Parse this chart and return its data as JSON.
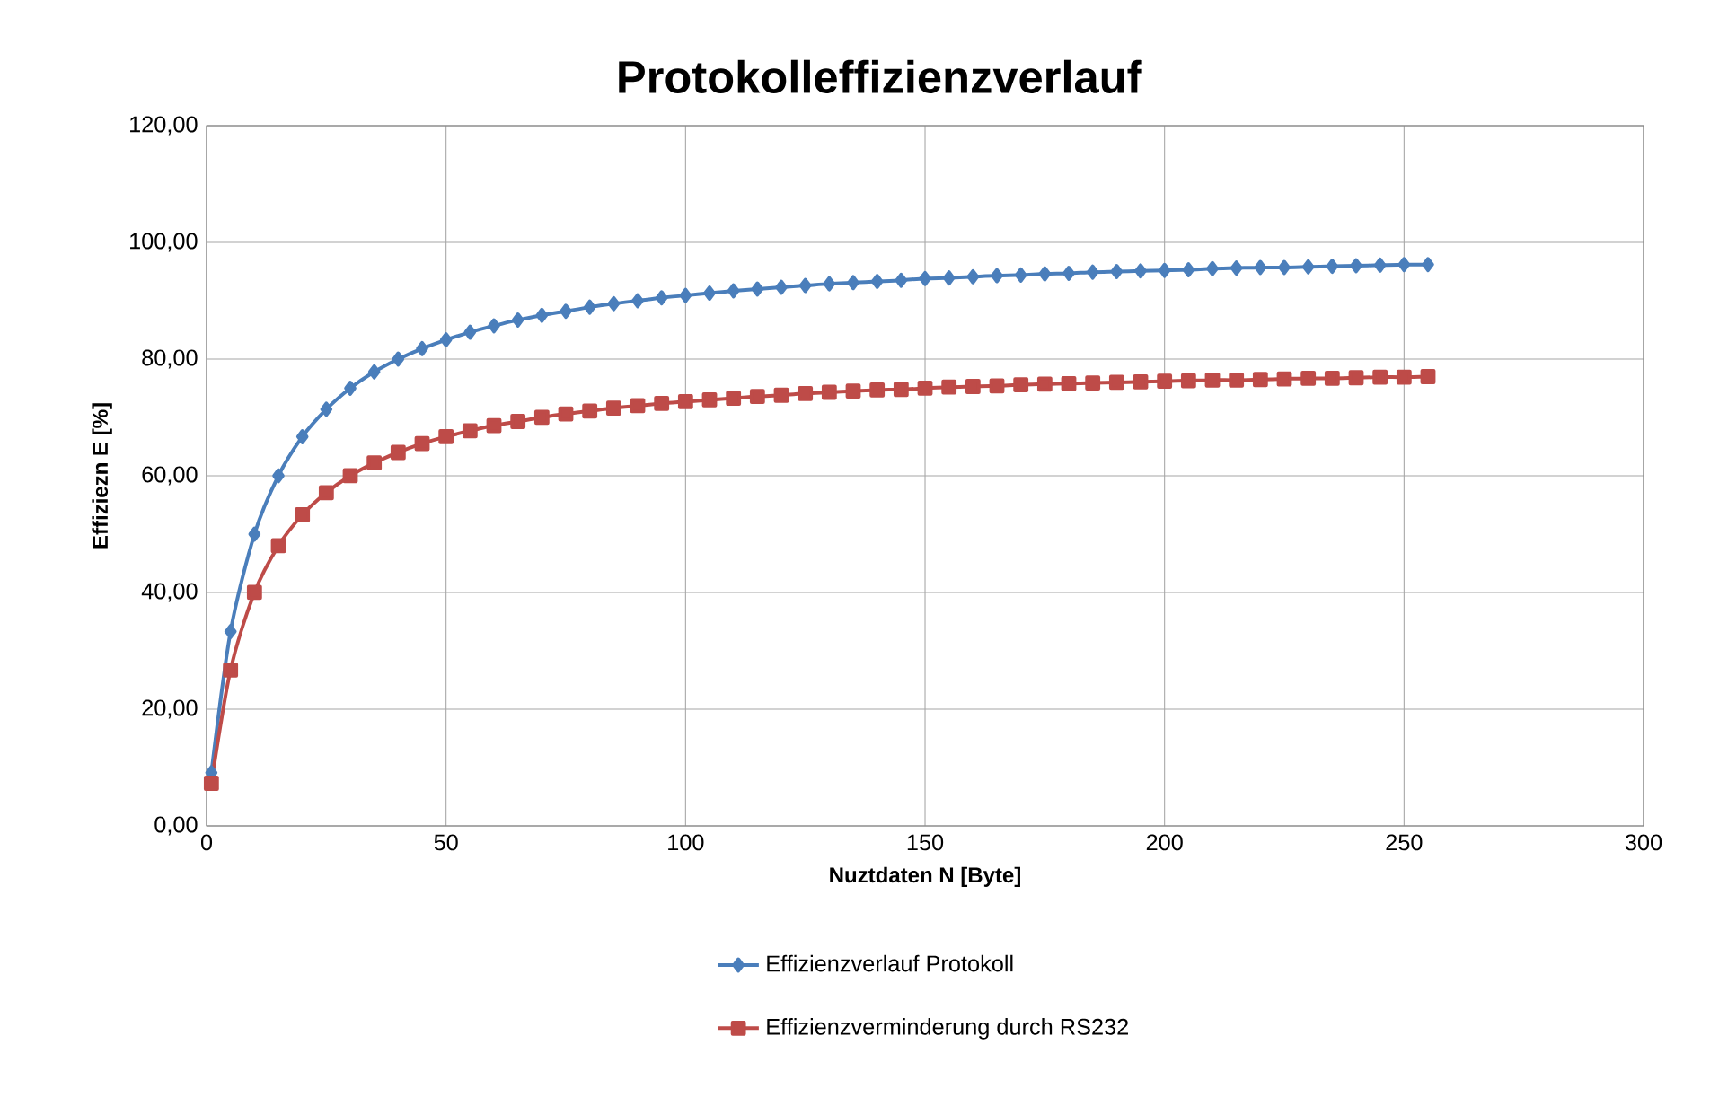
{
  "chart_data": {
    "type": "line",
    "title": "Protokolleffizienzverlauf",
    "xlabel": "Nuztdaten N [Byte]",
    "ylabel": "Effiziezn E [%]",
    "x": [
      1,
      5,
      10,
      15,
      20,
      25,
      30,
      35,
      40,
      45,
      50,
      55,
      60,
      65,
      70,
      75,
      80,
      85,
      90,
      95,
      100,
      105,
      110,
      115,
      120,
      125,
      130,
      135,
      140,
      145,
      150,
      155,
      160,
      165,
      170,
      175,
      180,
      185,
      190,
      195,
      200,
      205,
      210,
      215,
      220,
      225,
      230,
      235,
      240,
      245,
      250,
      255
    ],
    "series": [
      {
        "name": "Effizienzverlauf Protokoll",
        "color": "#4a7ebb",
        "marker": "diamond",
        "values": [
          9.1,
          33.3,
          50.0,
          60.0,
          66.7,
          71.4,
          75.0,
          77.8,
          80.0,
          81.8,
          83.3,
          84.6,
          85.7,
          86.7,
          87.5,
          88.2,
          88.9,
          89.5,
          90.0,
          90.5,
          90.9,
          91.3,
          91.7,
          92.0,
          92.3,
          92.6,
          92.9,
          93.1,
          93.3,
          93.5,
          93.8,
          93.9,
          94.1,
          94.3,
          94.4,
          94.6,
          94.7,
          94.9,
          95.0,
          95.1,
          95.2,
          95.3,
          95.5,
          95.6,
          95.7,
          95.7,
          95.8,
          95.9,
          96.0,
          96.1,
          96.2,
          96.2
        ]
      },
      {
        "name": "Effizienzverminderung durch RS232",
        "color": "#be4b48",
        "marker": "square",
        "values": [
          7.3,
          26.7,
          40.0,
          48.0,
          53.3,
          57.1,
          60.0,
          62.2,
          64.0,
          65.5,
          66.7,
          67.7,
          68.6,
          69.3,
          70.0,
          70.6,
          71.1,
          71.6,
          72.0,
          72.4,
          72.7,
          73.0,
          73.3,
          73.6,
          73.8,
          74.1,
          74.3,
          74.5,
          74.7,
          74.8,
          75.0,
          75.2,
          75.3,
          75.4,
          75.6,
          75.7,
          75.8,
          75.9,
          76.0,
          76.1,
          76.2,
          76.3,
          76.4,
          76.4,
          76.5,
          76.6,
          76.7,
          76.7,
          76.8,
          76.9,
          76.9,
          77.0
        ]
      }
    ],
    "xlim": [
      0,
      300
    ],
    "ylim": [
      0,
      120
    ],
    "xticks": [
      0,
      50,
      100,
      150,
      200,
      250,
      300
    ],
    "yticks": [
      {
        "value": 0,
        "label": "0,00"
      },
      {
        "value": 20,
        "label": "20,00"
      },
      {
        "value": 40,
        "label": "40,00"
      },
      {
        "value": 60,
        "label": "60,00"
      },
      {
        "value": 80,
        "label": "80,00"
      },
      {
        "value": 100,
        "label": "100,00"
      },
      {
        "value": 120,
        "label": "120,00"
      }
    ],
    "grid": true,
    "legend": "bottom"
  }
}
